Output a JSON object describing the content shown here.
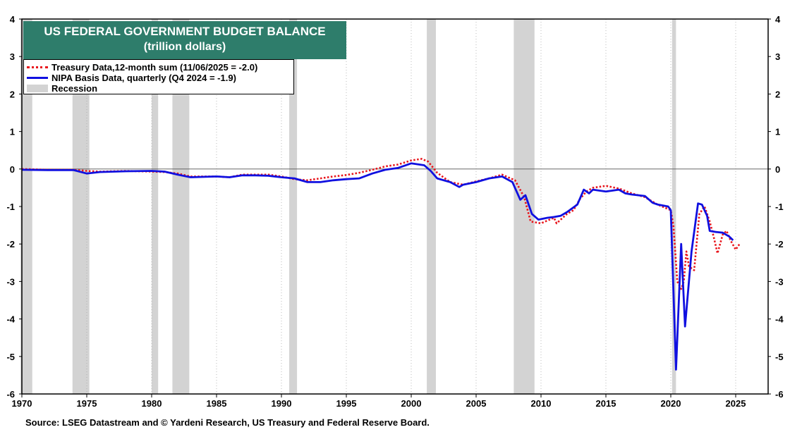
{
  "chart_data": {
    "type": "line",
    "title": "US FEDERAL GOVERNMENT BUDGET BALANCE",
    "subtitle": "(trillion dollars)",
    "xlim": [
      1970,
      2027.5
    ],
    "ylim": [
      -6,
      4
    ],
    "x_ticks": [
      "1970",
      "1975",
      "1980",
      "1985",
      "1990",
      "1995",
      "2000",
      "2005",
      "2010",
      "2015",
      "2020",
      "2025"
    ],
    "y_ticks": [
      "4",
      "3",
      "2",
      "1",
      "0",
      "-1",
      "-2",
      "-3",
      "-4",
      "-5",
      "-6"
    ],
    "grid": "vertical dotted",
    "legend_placement": "top-left",
    "recessions": [
      [
        1969.9,
        1970.8
      ],
      [
        1973.9,
        1975.2
      ],
      [
        1980.0,
        1980.5
      ],
      [
        1981.6,
        1982.9
      ],
      [
        1990.6,
        1991.2
      ],
      [
        2001.2,
        2001.9
      ],
      [
        2007.9,
        2009.5
      ],
      [
        2020.1,
        2020.4
      ]
    ],
    "series": [
      {
        "name": "Treasury Data,12-month sum  (11/06/2025 = -2.0)",
        "style": "dotted",
        "color": "#e8141b",
        "points": [
          [
            1970,
            0.0
          ],
          [
            1972,
            -0.02
          ],
          [
            1974,
            -0.02
          ],
          [
            1975,
            -0.05
          ],
          [
            1976,
            -0.07
          ],
          [
            1978,
            -0.05
          ],
          [
            1980,
            -0.07
          ],
          [
            1981,
            -0.08
          ],
          [
            1982,
            -0.12
          ],
          [
            1983,
            -0.2
          ],
          [
            1985,
            -0.2
          ],
          [
            1986,
            -0.22
          ],
          [
            1987,
            -0.15
          ],
          [
            1988,
            -0.15
          ],
          [
            1989,
            -0.15
          ],
          [
            1990,
            -0.2
          ],
          [
            1991,
            -0.27
          ],
          [
            1992,
            -0.3
          ],
          [
            1993,
            -0.25
          ],
          [
            1994,
            -0.2
          ],
          [
            1995,
            -0.16
          ],
          [
            1996,
            -0.1
          ],
          [
            1997,
            -0.02
          ],
          [
            1998,
            0.07
          ],
          [
            1999,
            0.12
          ],
          [
            2000,
            0.23
          ],
          [
            2000.8,
            0.27
          ],
          [
            2001.3,
            0.2
          ],
          [
            2002,
            -0.1
          ],
          [
            2003,
            -0.35
          ],
          [
            2004,
            -0.42
          ],
          [
            2005,
            -0.33
          ],
          [
            2006,
            -0.25
          ],
          [
            2007,
            -0.15
          ],
          [
            2008,
            -0.3
          ],
          [
            2008.7,
            -0.75
          ],
          [
            2009.2,
            -1.4
          ],
          [
            2010,
            -1.45
          ],
          [
            2011,
            -1.3
          ],
          [
            2011.2,
            -1.45
          ],
          [
            2012,
            -1.2
          ],
          [
            2012.5,
            -1.1
          ],
          [
            2013,
            -0.8
          ],
          [
            2013.5,
            -0.6
          ],
          [
            2014,
            -0.5
          ],
          [
            2015,
            -0.45
          ],
          [
            2016,
            -0.52
          ],
          [
            2017,
            -0.65
          ],
          [
            2018,
            -0.75
          ],
          [
            2019,
            -0.95
          ],
          [
            2020,
            -1.1
          ],
          [
            2020.2,
            -1.5
          ],
          [
            2020.5,
            -3.0
          ],
          [
            2020.8,
            -3.2
          ],
          [
            2021,
            -3.0
          ],
          [
            2021.2,
            -2.2
          ],
          [
            2021.4,
            -2.6
          ],
          [
            2021.8,
            -2.7
          ],
          [
            2022.2,
            -1.2
          ],
          [
            2022.6,
            -1.0
          ],
          [
            2023,
            -1.4
          ],
          [
            2023.3,
            -1.8
          ],
          [
            2023.6,
            -2.25
          ],
          [
            2024,
            -1.75
          ],
          [
            2024.3,
            -1.65
          ],
          [
            2024.6,
            -1.9
          ],
          [
            2025,
            -2.15
          ],
          [
            2025.3,
            -2.0
          ]
        ]
      },
      {
        "name": "NIPA Basis Data, quarterly (Q4 2024 = -1.9)",
        "style": "solid",
        "color": "#1010e0",
        "points": [
          [
            1970,
            -0.02
          ],
          [
            1972,
            -0.03
          ],
          [
            1974,
            -0.03
          ],
          [
            1975,
            -0.12
          ],
          [
            1976,
            -0.08
          ],
          [
            1978,
            -0.06
          ],
          [
            1980,
            -0.05
          ],
          [
            1981,
            -0.07
          ],
          [
            1982,
            -0.15
          ],
          [
            1983,
            -0.22
          ],
          [
            1985,
            -0.2
          ],
          [
            1986,
            -0.22
          ],
          [
            1987,
            -0.17
          ],
          [
            1988,
            -0.17
          ],
          [
            1989,
            -0.18
          ],
          [
            1990,
            -0.22
          ],
          [
            1991,
            -0.25
          ],
          [
            1992,
            -0.35
          ],
          [
            1993,
            -0.35
          ],
          [
            1994,
            -0.3
          ],
          [
            1995,
            -0.27
          ],
          [
            1996,
            -0.25
          ],
          [
            1997,
            -0.12
          ],
          [
            1998,
            -0.02
          ],
          [
            1999,
            0.03
          ],
          [
            2000,
            0.15
          ],
          [
            2001,
            0.1
          ],
          [
            2001.5,
            -0.05
          ],
          [
            2002,
            -0.25
          ],
          [
            2003,
            -0.35
          ],
          [
            2003.7,
            -0.48
          ],
          [
            2004,
            -0.42
          ],
          [
            2005,
            -0.35
          ],
          [
            2006,
            -0.25
          ],
          [
            2007,
            -0.2
          ],
          [
            2007.8,
            -0.35
          ],
          [
            2008.4,
            -0.82
          ],
          [
            2008.8,
            -0.7
          ],
          [
            2009.3,
            -1.2
          ],
          [
            2009.8,
            -1.35
          ],
          [
            2010.5,
            -1.3
          ],
          [
            2011,
            -1.28
          ],
          [
            2011.5,
            -1.25
          ],
          [
            2012,
            -1.15
          ],
          [
            2012.8,
            -0.95
          ],
          [
            2013.3,
            -0.55
          ],
          [
            2013.7,
            -0.65
          ],
          [
            2014,
            -0.55
          ],
          [
            2015,
            -0.6
          ],
          [
            2016,
            -0.55
          ],
          [
            2016.5,
            -0.65
          ],
          [
            2017,
            -0.68
          ],
          [
            2018,
            -0.72
          ],
          [
            2018.6,
            -0.9
          ],
          [
            2019,
            -0.95
          ],
          [
            2019.8,
            -1.0
          ],
          [
            2020,
            -1.1
          ],
          [
            2020.4,
            -5.35
          ],
          [
            2020.8,
            -2.0
          ],
          [
            2021.1,
            -4.2
          ],
          [
            2021.6,
            -2.2
          ],
          [
            2022.1,
            -0.92
          ],
          [
            2022.4,
            -0.95
          ],
          [
            2022.8,
            -1.25
          ],
          [
            2023,
            -1.65
          ],
          [
            2023.5,
            -1.68
          ],
          [
            2024,
            -1.7
          ],
          [
            2024.5,
            -1.8
          ],
          [
            2024.8,
            -1.9
          ]
        ]
      }
    ],
    "legend_recession": "Recession"
  },
  "source": "Source: LSEG Datastream and © Yardeni Research, US Treasury and Federal Reserve Board."
}
